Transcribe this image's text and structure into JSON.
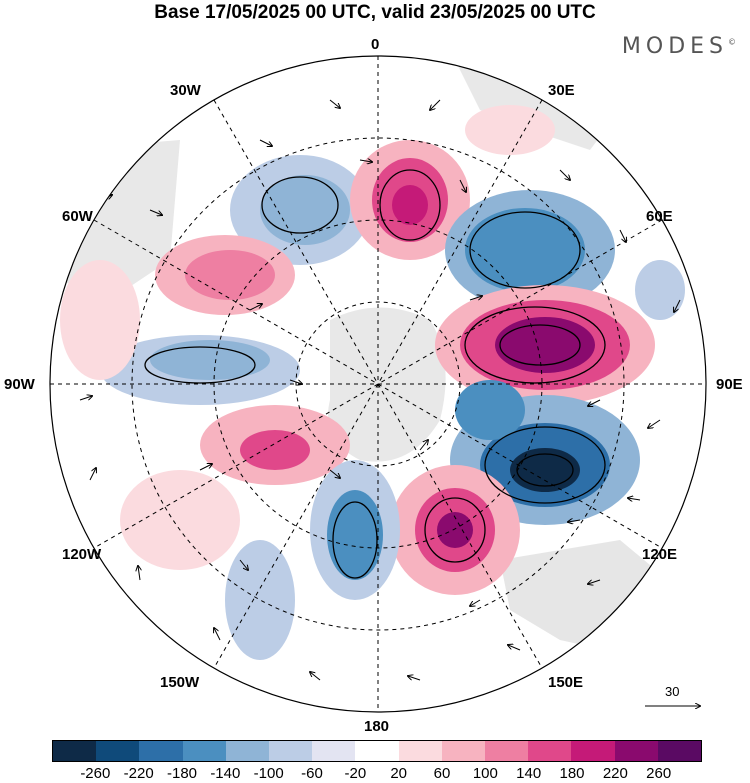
{
  "title": "Base 17/05/2025 00 UTC, valid 23/05/2025 00 UTC",
  "brand": "MODES",
  "brand_mark": "©",
  "longitude_labels": {
    "top": "0",
    "top_right": "30E",
    "top_left": "30W",
    "upper_right": "60E",
    "upper_left": "60W",
    "right": "90E",
    "left": "90W",
    "lower_right": "120E",
    "lower_left": "120W",
    "bottom_right": "150E",
    "bottom_left": "150W",
    "bottom": "180"
  },
  "reference_vector": "30",
  "colorbar": {
    "colors": [
      "#0e2a47",
      "#0f4a7a",
      "#2d6fa8",
      "#4b8fc0",
      "#8fb4d6",
      "#bccde6",
      "#e3e4f2",
      "#ffffff",
      "#fbdbdf",
      "#f7b3c0",
      "#ee7fa2",
      "#e0488a",
      "#c51a78",
      "#8a0a6e",
      "#5a0a63"
    ],
    "ticks": [
      "-260",
      "-220",
      "-180",
      "-140",
      "-100",
      "-60",
      "-20",
      "20",
      "60",
      "100",
      "140",
      "180",
      "220",
      "260"
    ]
  }
}
